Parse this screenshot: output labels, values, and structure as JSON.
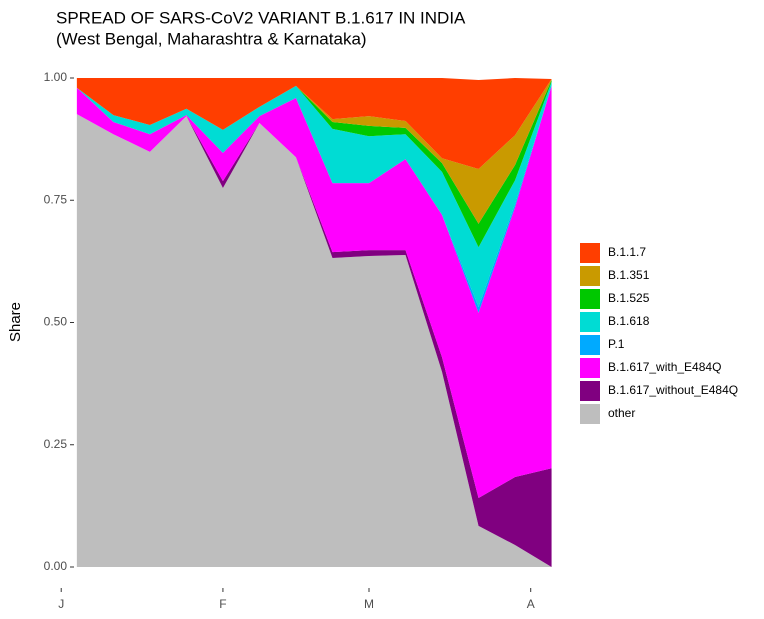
{
  "chart_data": {
    "type": "stacked_area",
    "title": "SPREAD OF SARS-CoV2 VARIANT B.1.617 IN INDIA",
    "subtitle": "(West Bengal, Maharashtra & Karnataka)",
    "y_label": "Share",
    "x": [
      3,
      10,
      17,
      24,
      31,
      38,
      45,
      52,
      59,
      66,
      73,
      80,
      87,
      94
    ],
    "xlim": [
      -1,
      96
    ],
    "xticks": [
      {
        "value": 0,
        "label": "J"
      },
      {
        "value": 31,
        "label": "F"
      },
      {
        "value": 59,
        "label": "M"
      },
      {
        "value": 90,
        "label": "A"
      }
    ],
    "ylim": [
      0,
      1
    ],
    "yticks": [
      {
        "value": 0,
        "label": "0.00"
      },
      {
        "value": 0.25,
        "label": "0.25"
      },
      {
        "value": 0.5,
        "label": "0.50"
      },
      {
        "value": 0.75,
        "label": "0.75"
      },
      {
        "value": 1,
        "label": "1.00"
      }
    ],
    "series": [
      {
        "name": "B.1.1.7",
        "color": "#ff3e00",
        "values": [
          0.02,
          0.076,
          0.096,
          0.063,
          0.106,
          0.059,
          0.016,
          0.084,
          0.078,
          0.088,
          0.164,
          0.182,
          0.117,
          0.0
        ]
      },
      {
        "name": "B.1.351",
        "color": "#c99a00",
        "values": [
          0,
          0,
          0,
          0,
          0,
          0,
          0,
          0.006,
          0.02,
          0.014,
          0.01,
          0.112,
          0.061,
          0.002
        ]
      },
      {
        "name": "B.1.525",
        "color": "#00c800",
        "values": [
          0,
          0,
          0,
          0,
          0,
          0,
          0,
          0.014,
          0.021,
          0.013,
          0.018,
          0.048,
          0.031,
          0.004
        ]
      },
      {
        "name": "B.1.618",
        "color": "#00dcd4",
        "values": [
          0,
          0.014,
          0.019,
          0.013,
          0.047,
          0.019,
          0.025,
          0.111,
          0.096,
          0.051,
          0.088,
          0.122,
          0.049,
          0.008
        ]
      },
      {
        "name": "P.1",
        "color": "#00aaff",
        "values": [
          0,
          0,
          0,
          0,
          0,
          0,
          0,
          0,
          0,
          0,
          0,
          0.012,
          0.006,
          0
        ]
      },
      {
        "name": "B.1.617_with_E484Q",
        "color": "#ff00ff",
        "values": [
          0.054,
          0.025,
          0.036,
          0.002,
          0.058,
          0.014,
          0.121,
          0.141,
          0.137,
          0.186,
          0.291,
          0.379,
          0.552,
          0.782
        ]
      },
      {
        "name": "B.1.617_without_E484Q",
        "color": "#800080",
        "values": [
          0,
          0,
          0,
          0,
          0.014,
          0,
          0,
          0.012,
          0.012,
          0.01,
          0.03,
          0.057,
          0.139,
          0.202
        ]
      },
      {
        "name": "other",
        "color": "#bebebe",
        "values": [
          0.926,
          0.885,
          0.849,
          0.922,
          0.775,
          0.908,
          0.838,
          0.632,
          0.636,
          0.638,
          0.399,
          0.084,
          0.045,
          0.0
        ]
      }
    ]
  }
}
